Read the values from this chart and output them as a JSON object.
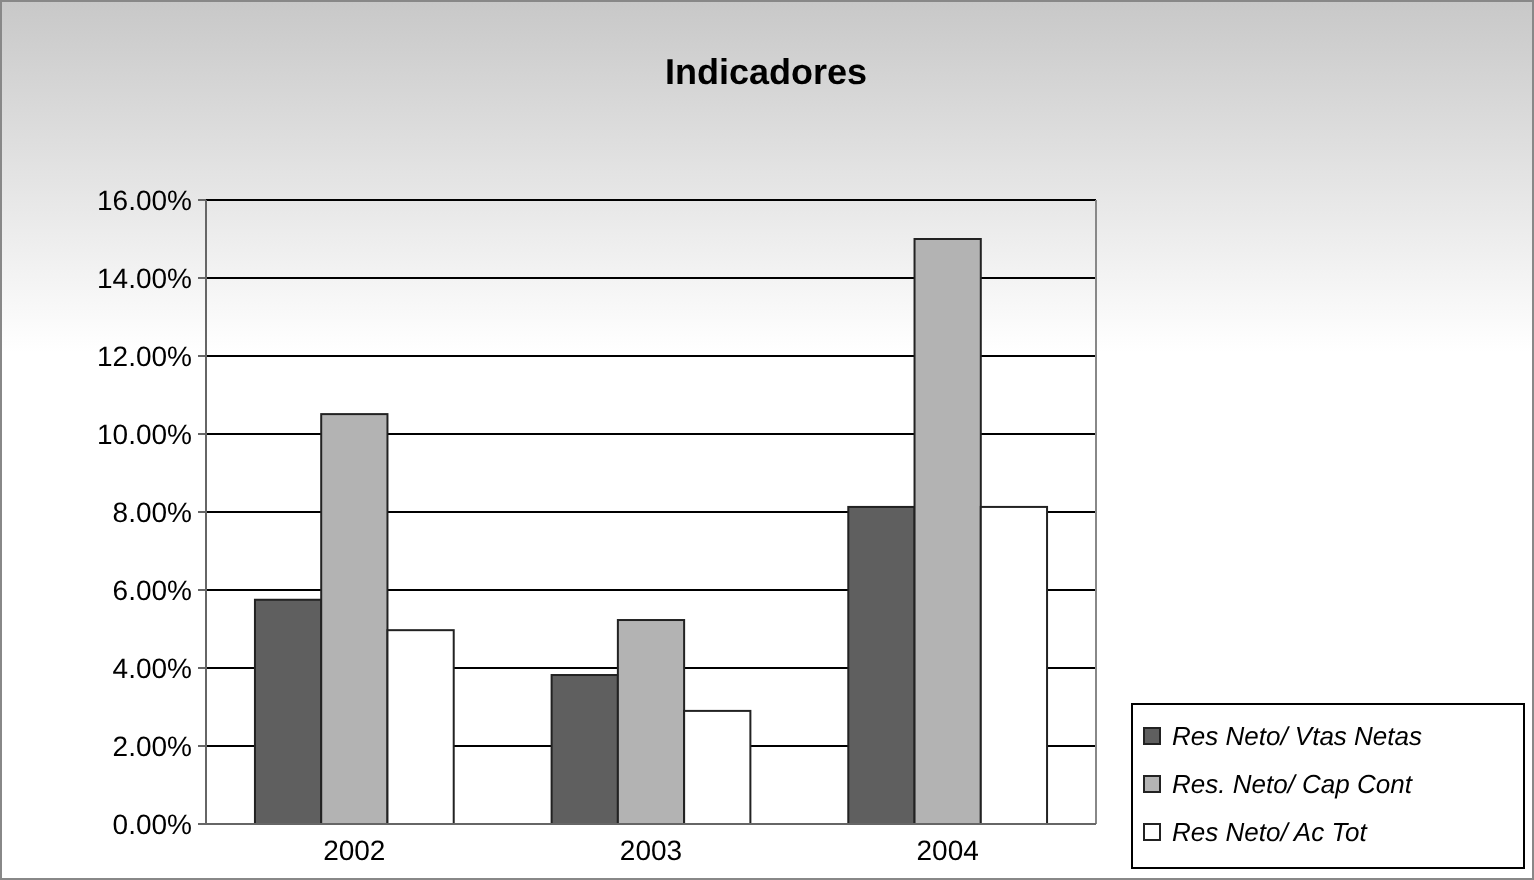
{
  "chart_data": {
    "type": "bar",
    "title": "Indicadores",
    "categories": [
      "2002",
      "2003",
      "2004"
    ],
    "series": [
      {
        "name": "Res Neto/ Vtas Netas",
        "color": "#5f5f5f",
        "values": [
          5.75,
          3.82,
          8.13
        ]
      },
      {
        "name": "Res. Neto/ Cap Cont",
        "color": "#b3b3b3",
        "values": [
          10.51,
          5.23,
          15.0
        ]
      },
      {
        "name": "Res Neto/ Ac Tot",
        "color": "#ffffff",
        "values": [
          4.97,
          2.9,
          8.13
        ]
      }
    ],
    "ylim": [
      0,
      16
    ],
    "yticks": [
      {
        "value": 0,
        "label": "0.00%"
      },
      {
        "value": 2,
        "label": "2.00%"
      },
      {
        "value": 4,
        "label": "4.00%"
      },
      {
        "value": 6,
        "label": "6.00%"
      },
      {
        "value": 8,
        "label": "8.00%"
      },
      {
        "value": 10,
        "label": "10.00%"
      },
      {
        "value": 12,
        "label": "12.00%"
      },
      {
        "value": 14,
        "label": "14.00%"
      },
      {
        "value": 16,
        "label": "16.00%"
      }
    ],
    "grid": "y",
    "legend": "bottom right"
  }
}
